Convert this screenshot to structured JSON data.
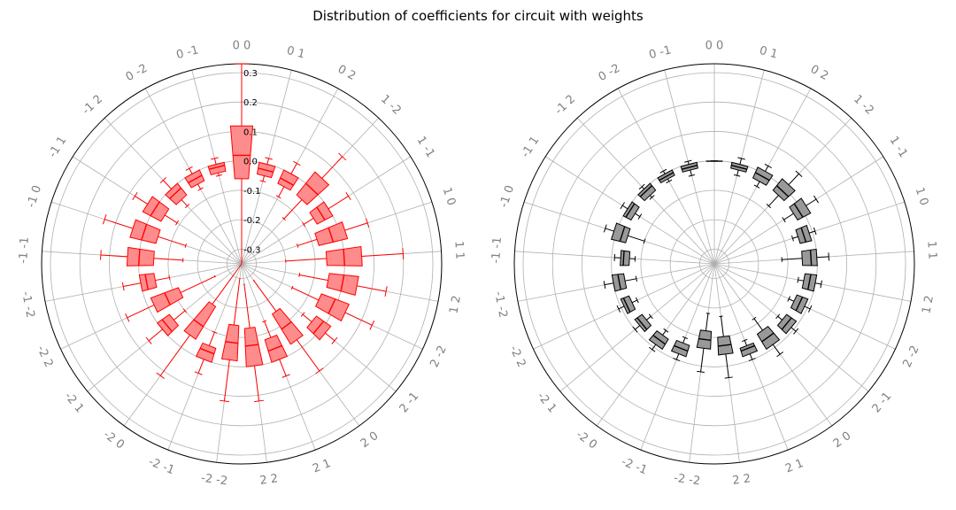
{
  "figure": {
    "title": "Distribution of coefficients for circuit with weights"
  },
  "chart_data": [
    {
      "type": "polar-boxplot",
      "style": {
        "color": "#ff0000",
        "box_fill": "#ff8c8c"
      },
      "radial_ticks": [
        "0.3",
        "0.2",
        "0.1",
        "0.0",
        "-0.1",
        "-0.2",
        "-0.3"
      ],
      "radial_tick_values": [
        0.3,
        0.2,
        0.1,
        0.0,
        -0.1,
        -0.2,
        -0.3
      ],
      "rlim": [
        -0.35,
        0.33
      ],
      "show_radial_labels": true,
      "grid": true,
      "series": [
        {
          "label": "0 0",
          "box": [
            -0.06,
            0.12
          ],
          "median": 0.02,
          "whiskers": [
            -0.35,
            0.33
          ]
        },
        {
          "label": "0 1",
          "box": [
            -0.04,
            0.0
          ],
          "median": -0.02,
          "whiskers": [
            -0.06,
            0.02
          ]
        },
        {
          "label": "0 2",
          "box": [
            -0.05,
            0.0
          ],
          "median": -0.03,
          "whiskers": [
            -0.09,
            0.04
          ]
        },
        {
          "label": "1 -2",
          "box": [
            -0.05,
            0.05
          ],
          "median": 0.0,
          "whiskers": [
            -0.14,
            0.15
          ]
        },
        {
          "label": "1 -1",
          "box": [
            -0.06,
            -0.0
          ],
          "median": -0.03,
          "whiskers": [
            -0.1,
            0.08
          ]
        },
        {
          "label": "1 0",
          "box": [
            -0.08,
            0.02
          ],
          "median": -0.03,
          "whiskers": [
            -0.15,
            0.1
          ]
        },
        {
          "label": "1 1",
          "box": [
            -0.06,
            0.06
          ],
          "median": 0.0,
          "whiskers": [
            -0.2,
            0.2
          ]
        },
        {
          "label": "1 2",
          "box": [
            -0.05,
            0.05
          ],
          "median": 0.0,
          "whiskers": [
            -0.15,
            0.15
          ]
        },
        {
          "label": "2 -2",
          "box": [
            -0.06,
            0.04
          ],
          "median": -0.01,
          "whiskers": [
            -0.16,
            0.14
          ]
        },
        {
          "label": "2 -1",
          "box": [
            -0.04,
            0.02
          ],
          "median": -0.01,
          "whiskers": [
            -0.08,
            0.06
          ]
        },
        {
          "label": "2 0",
          "box": [
            -0.15,
            -0.03
          ],
          "median": -0.09,
          "whiskers": [
            -0.28,
            0.1
          ]
        },
        {
          "label": "2 1",
          "box": [
            -0.08,
            0.0
          ],
          "median": -0.04,
          "whiskers": [
            -0.14,
            0.06
          ]
        },
        {
          "label": "2 2",
          "box": [
            -0.13,
            0.0
          ],
          "median": -0.07,
          "whiskers": [
            -0.28,
            0.12
          ]
        },
        {
          "label": "-2 -2",
          "box": [
            -0.14,
            -0.02
          ],
          "median": -0.08,
          "whiskers": [
            -0.3,
            0.12
          ]
        },
        {
          "label": "-2 -1",
          "box": [
            -0.05,
            0.0
          ],
          "median": -0.03,
          "whiskers": [
            -0.1,
            0.05
          ]
        },
        {
          "label": "-2 0",
          "box": [
            -0.18,
            -0.05
          ],
          "median": -0.1,
          "whiskers": [
            -0.35,
            0.12
          ]
        },
        {
          "label": "-2 1",
          "box": [
            -0.05,
            0.0
          ],
          "median": -0.02,
          "whiskers": [
            -0.1,
            0.06
          ]
        },
        {
          "label": "-2 2",
          "box": [
            -0.12,
            -0.02
          ],
          "median": -0.07,
          "whiskers": [
            -0.25,
            0.08
          ]
        },
        {
          "label": "-1 -2",
          "box": [
            -0.05,
            0.0
          ],
          "median": -0.02,
          "whiskers": [
            -0.1,
            0.06
          ]
        },
        {
          "label": "-1 -1",
          "box": [
            -0.05,
            0.04
          ],
          "median": 0.0,
          "whiskers": [
            -0.15,
            0.13
          ]
        },
        {
          "label": "-1 0",
          "box": [
            -0.05,
            0.04
          ],
          "median": 0.0,
          "whiskers": [
            -0.15,
            0.14
          ]
        },
        {
          "label": "-1 1",
          "box": [
            -0.04,
            0.03
          ],
          "median": 0.0,
          "whiskers": [
            -0.09,
            0.08
          ]
        },
        {
          "label": "-1 2",
          "box": [
            -0.05,
            0.0
          ],
          "median": -0.02,
          "whiskers": [
            -0.08,
            0.04
          ]
        },
        {
          "label": "0 -2",
          "box": [
            -0.04,
            0.0
          ],
          "median": -0.02,
          "whiskers": [
            -0.06,
            0.02
          ]
        },
        {
          "label": "0 -1",
          "box": [
            -0.03,
            0.0
          ],
          "median": -0.01,
          "whiskers": [
            -0.04,
            0.02
          ]
        }
      ]
    },
    {
      "type": "polar-boxplot",
      "style": {
        "color": "#000000",
        "box_fill": "#999999"
      },
      "radial_ticks": [],
      "radial_tick_values": [
        0.3,
        0.2,
        0.1,
        0.0,
        -0.1,
        -0.2,
        -0.3
      ],
      "rlim": [
        -0.35,
        0.33
      ],
      "show_radial_labels": false,
      "grid": true,
      "series": [
        {
          "label": "0 0",
          "box": [
            0.0,
            0.0
          ],
          "median": 0.0,
          "whiskers": [
            0.0,
            0.0
          ]
        },
        {
          "label": "0 1",
          "box": [
            -0.02,
            0.0
          ],
          "median": -0.01,
          "whiskers": [
            -0.04,
            0.02
          ]
        },
        {
          "label": "0 2",
          "box": [
            -0.03,
            0.01
          ],
          "median": -0.01,
          "whiskers": [
            -0.05,
            0.03
          ]
        },
        {
          "label": "1 -2",
          "box": [
            -0.03,
            0.02
          ],
          "median": -0.01,
          "whiskers": [
            -0.08,
            0.07
          ]
        },
        {
          "label": "1 -1",
          "box": [
            -0.03,
            0.02
          ],
          "median": -0.01,
          "whiskers": [
            -0.07,
            0.06
          ]
        },
        {
          "label": "1 0",
          "box": [
            -0.05,
            -0.01
          ],
          "median": -0.03,
          "whiskers": [
            -0.07,
            0.01
          ]
        },
        {
          "label": "1 1",
          "box": [
            -0.05,
            0.0
          ],
          "median": -0.02,
          "whiskers": [
            -0.12,
            0.04
          ]
        },
        {
          "label": "1 2",
          "box": [
            -0.04,
            0.0
          ],
          "median": -0.02,
          "whiskers": [
            -0.06,
            0.02
          ]
        },
        {
          "label": "2 -2",
          "box": [
            -0.05,
            -0.01
          ],
          "median": -0.03,
          "whiskers": [
            -0.07,
            0.01
          ]
        },
        {
          "label": "2 -1",
          "box": [
            -0.05,
            -0.01
          ],
          "median": -0.03,
          "whiskers": [
            -0.07,
            0.01
          ]
        },
        {
          "label": "2 0",
          "box": [
            -0.07,
            -0.01
          ],
          "median": -0.04,
          "whiskers": [
            -0.12,
            0.03
          ]
        },
        {
          "label": "2 1",
          "box": [
            -0.05,
            -0.02
          ],
          "median": -0.04,
          "whiskers": [
            -0.07,
            0.0
          ]
        },
        {
          "label": "2 2",
          "box": [
            -0.1,
            -0.04
          ],
          "median": -0.07,
          "whiskers": [
            -0.17,
            0.04
          ]
        },
        {
          "label": "-2 -2",
          "box": [
            -0.12,
            -0.06
          ],
          "median": -0.09,
          "whiskers": [
            -0.18,
            0.02
          ]
        },
        {
          "label": "-2 -1",
          "box": [
            -0.06,
            -0.02
          ],
          "median": -0.04,
          "whiskers": [
            -0.08,
            0.0
          ]
        },
        {
          "label": "-2 0",
          "box": [
            -0.05,
            -0.01
          ],
          "median": -0.03,
          "whiskers": [
            -0.07,
            0.01
          ]
        },
        {
          "label": "-2 1",
          "box": [
            -0.05,
            -0.02
          ],
          "median": -0.03,
          "whiskers": [
            -0.07,
            0.0
          ]
        },
        {
          "label": "-2 2",
          "box": [
            -0.04,
            -0.01
          ],
          "median": -0.02,
          "whiskers": [
            -0.06,
            0.01
          ]
        },
        {
          "label": "-1 -2",
          "box": [
            -0.04,
            0.0
          ],
          "median": -0.02,
          "whiskers": [
            -0.08,
            0.03
          ]
        },
        {
          "label": "-1 -1",
          "box": [
            -0.06,
            -0.03
          ],
          "median": -0.04,
          "whiskers": [
            -0.08,
            -0.01
          ]
        },
        {
          "label": "-1 0",
          "box": [
            -0.04,
            0.01
          ],
          "median": -0.02,
          "whiskers": [
            -0.1,
            0.04
          ]
        },
        {
          "label": "-1 1",
          "box": [
            -0.03,
            0.0
          ],
          "median": -0.01,
          "whiskers": [
            -0.05,
            0.02
          ]
        },
        {
          "label": "-1 2",
          "box": [
            -0.03,
            0.0
          ],
          "median": -0.01,
          "whiskers": [
            -0.04,
            0.01
          ]
        },
        {
          "label": "0 -2",
          "box": [
            -0.02,
            0.0
          ],
          "median": -0.01,
          "whiskers": [
            -0.03,
            0.01
          ]
        },
        {
          "label": "0 -1",
          "box": [
            -0.02,
            0.0
          ],
          "median": -0.01,
          "whiskers": [
            -0.04,
            0.01
          ]
        }
      ]
    }
  ]
}
